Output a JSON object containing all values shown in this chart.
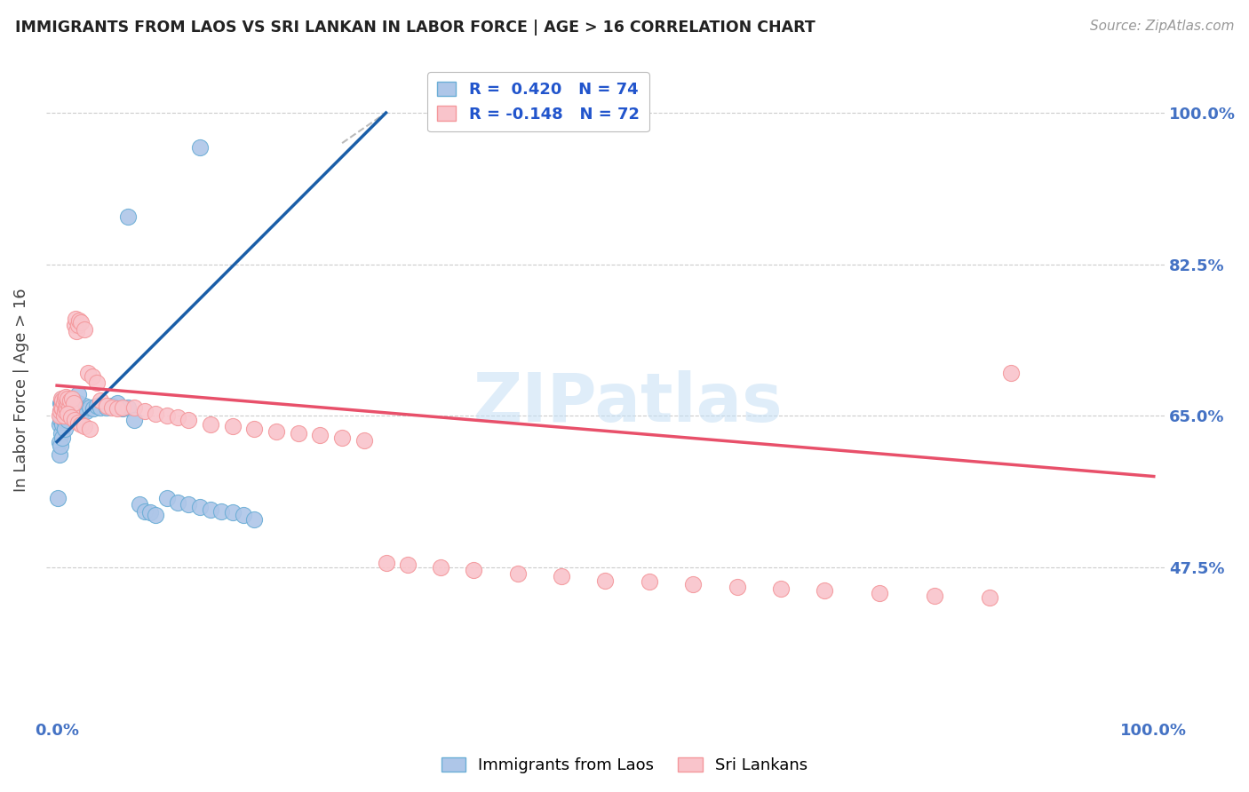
{
  "title": "IMMIGRANTS FROM LAOS VS SRI LANKAN IN LABOR FORCE | AGE > 16 CORRELATION CHART",
  "source": "Source: ZipAtlas.com",
  "ylabel": "In Labor Force | Age > 16",
  "watermark": "ZIPatlas",
  "background_color": "#ffffff",
  "grid_color": "#cccccc",
  "laos_color_fill": "#aec6e8",
  "laos_color_edge": "#6baed6",
  "sri_color_fill": "#f9c4cb",
  "sri_color_edge": "#f4989c",
  "trend_laos_color": "#1a5ea8",
  "trend_sri_color": "#e8506a",
  "dash_color": "#aaaaaa",
  "title_color": "#222222",
  "source_color": "#999999",
  "axis_label_color": "#4472c4",
  "ylabel_color": "#444444",
  "legend_label_color": "#2255cc",
  "laos_R": 0.42,
  "laos_N": 74,
  "sri_R": -0.148,
  "sri_N": 72,
  "xlim": [
    -0.01,
    1.01
  ],
  "ylim": [
    0.3,
    1.06
  ],
  "yticks": [
    0.475,
    0.65,
    0.825,
    1.0
  ],
  "ytick_labels": [
    "47.5%",
    "65.0%",
    "82.5%",
    "100.0%"
  ],
  "xticks": [
    0.0,
    0.25,
    0.5,
    0.75,
    1.0
  ],
  "xtick_labels": [
    "0.0%",
    "",
    "",
    "",
    "100.0%"
  ],
  "laos_x": [
    0.001,
    0.002,
    0.002,
    0.003,
    0.003,
    0.003,
    0.004,
    0.004,
    0.004,
    0.005,
    0.005,
    0.005,
    0.006,
    0.006,
    0.006,
    0.007,
    0.007,
    0.008,
    0.008,
    0.009,
    0.009,
    0.01,
    0.01,
    0.011,
    0.011,
    0.012,
    0.012,
    0.013,
    0.014,
    0.015,
    0.015,
    0.016,
    0.017,
    0.018,
    0.019,
    0.02,
    0.021,
    0.022,
    0.023,
    0.025,
    0.027,
    0.03,
    0.033,
    0.036,
    0.04,
    0.045,
    0.05,
    0.055,
    0.06,
    0.065,
    0.07,
    0.075,
    0.08,
    0.085,
    0.09,
    0.1,
    0.11,
    0.12,
    0.13,
    0.14,
    0.15,
    0.16,
    0.17,
    0.18,
    0.002,
    0.003,
    0.005,
    0.007,
    0.01,
    0.013,
    0.016,
    0.019,
    0.065,
    0.13
  ],
  "laos_y": [
    0.555,
    0.62,
    0.64,
    0.645,
    0.655,
    0.665,
    0.63,
    0.65,
    0.665,
    0.64,
    0.66,
    0.67,
    0.645,
    0.658,
    0.668,
    0.65,
    0.665,
    0.648,
    0.662,
    0.65,
    0.668,
    0.648,
    0.662,
    0.652,
    0.67,
    0.645,
    0.668,
    0.655,
    0.66,
    0.648,
    0.668,
    0.658,
    0.662,
    0.65,
    0.665,
    0.658,
    0.65,
    0.66,
    0.655,
    0.662,
    0.655,
    0.66,
    0.658,
    0.662,
    0.66,
    0.66,
    0.662,
    0.665,
    0.658,
    0.66,
    0.645,
    0.548,
    0.54,
    0.538,
    0.535,
    0.555,
    0.55,
    0.548,
    0.545,
    0.542,
    0.54,
    0.538,
    0.535,
    0.53,
    0.605,
    0.615,
    0.625,
    0.635,
    0.645,
    0.655,
    0.665,
    0.675,
    0.88,
    0.96
  ],
  "sri_x": [
    0.002,
    0.003,
    0.004,
    0.004,
    0.005,
    0.005,
    0.006,
    0.006,
    0.007,
    0.007,
    0.008,
    0.008,
    0.009,
    0.01,
    0.01,
    0.011,
    0.012,
    0.013,
    0.014,
    0.015,
    0.016,
    0.017,
    0.018,
    0.019,
    0.02,
    0.022,
    0.025,
    0.028,
    0.032,
    0.036,
    0.04,
    0.045,
    0.05,
    0.055,
    0.06,
    0.07,
    0.08,
    0.09,
    0.1,
    0.11,
    0.12,
    0.14,
    0.16,
    0.18,
    0.2,
    0.22,
    0.24,
    0.26,
    0.28,
    0.3,
    0.32,
    0.35,
    0.38,
    0.42,
    0.46,
    0.5,
    0.54,
    0.58,
    0.62,
    0.66,
    0.7,
    0.75,
    0.8,
    0.85,
    0.01,
    0.013,
    0.016,
    0.019,
    0.022,
    0.025,
    0.03,
    0.87
  ],
  "sri_y": [
    0.65,
    0.655,
    0.66,
    0.67,
    0.658,
    0.668,
    0.65,
    0.665,
    0.655,
    0.67,
    0.66,
    0.672,
    0.658,
    0.665,
    0.67,
    0.66,
    0.668,
    0.655,
    0.67,
    0.665,
    0.755,
    0.762,
    0.748,
    0.755,
    0.76,
    0.758,
    0.75,
    0.7,
    0.695,
    0.688,
    0.668,
    0.662,
    0.66,
    0.658,
    0.66,
    0.66,
    0.655,
    0.652,
    0.65,
    0.648,
    0.645,
    0.64,
    0.638,
    0.635,
    0.632,
    0.63,
    0.628,
    0.625,
    0.622,
    0.48,
    0.478,
    0.475,
    0.472,
    0.468,
    0.465,
    0.46,
    0.458,
    0.455,
    0.452,
    0.45,
    0.448,
    0.445,
    0.442,
    0.44,
    0.652,
    0.648,
    0.645,
    0.642,
    0.64,
    0.638,
    0.635,
    0.7
  ]
}
